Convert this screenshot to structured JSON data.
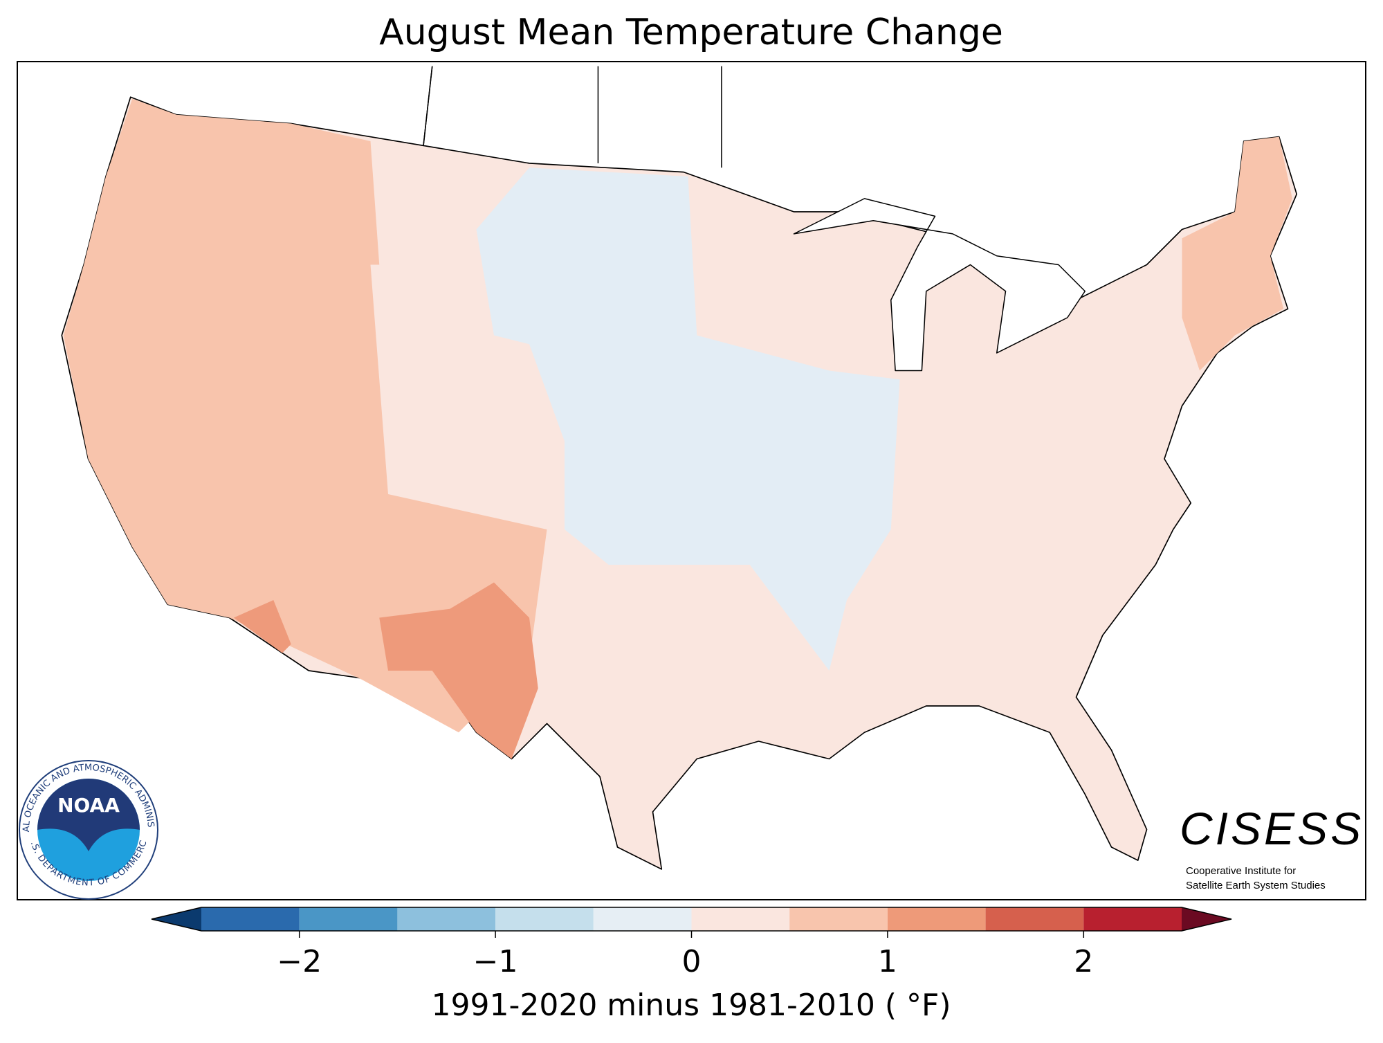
{
  "title": "August Mean Temperature Change",
  "colorbar": {
    "bounds": [
      -2.5,
      -2,
      -1.5,
      -1,
      -0.5,
      0,
      0.5,
      1,
      1.5,
      2,
      2.5
    ],
    "colors": [
      "#2a6aad",
      "#4a96c6",
      "#8dc0dd",
      "#c5dfec",
      "#e6eef4",
      "#fae6df",
      "#f8c5ad",
      "#ee9a79",
      "#d6604d",
      "#b8202f"
    ],
    "extend_colors": [
      "#0b3a6e",
      "#6b0a22"
    ],
    "ticks": [
      {
        "value": -2,
        "label": "−2"
      },
      {
        "value": -1,
        "label": "−1"
      },
      0,
      1,
      2
    ],
    "label": "1991-2020 minus 1981-2010 ( °F)"
  },
  "logos": {
    "noaa": {
      "name": "NOAA",
      "ring_top": "NATIONAL OCEANIC AND ATMOSPHERIC ADMINISTRATION",
      "ring_bottom": "U.S. DEPARTMENT OF COMMERCE"
    },
    "cisess": {
      "name": "CISESS",
      "line1": "Cooperative Institute for",
      "line2": "Satellite Earth System Studies"
    }
  }
}
